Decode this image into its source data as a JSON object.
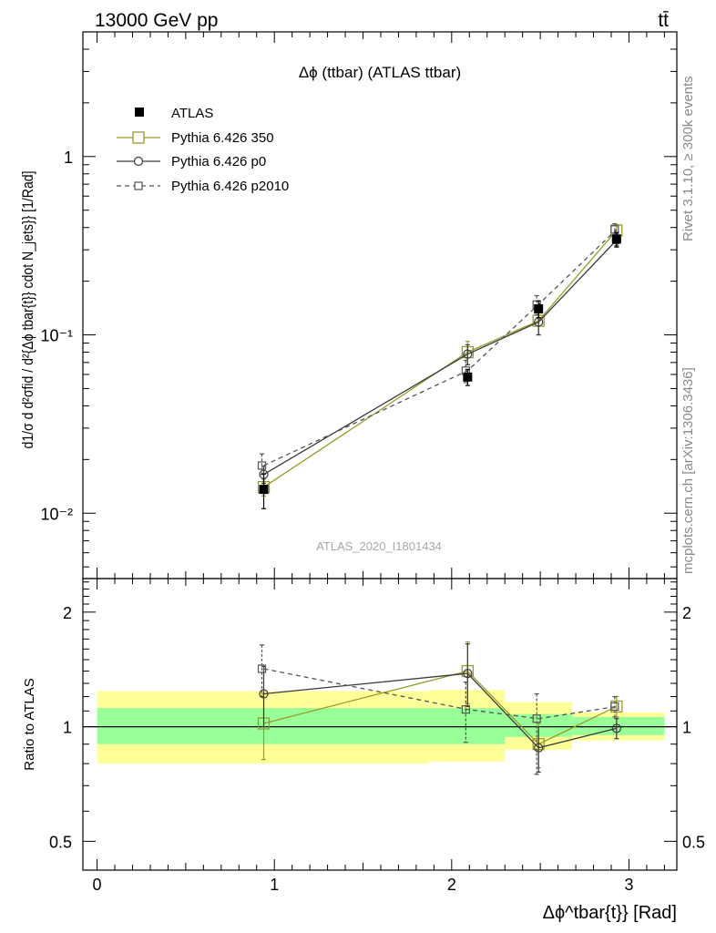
{
  "header": {
    "energy_label": "13000 GeV pp",
    "process_label": "tt̄"
  },
  "side_text": {
    "rivet": "Rivet 3.1.10, ≥ 300k events",
    "mcplots": "mcplots.cern.ch [arXiv:1306.3436]"
  },
  "colors": {
    "atlas": "#000000",
    "p350": "#9a9a2a",
    "p0": "#3a3a3a",
    "p2010": "#555555",
    "band_inner": "#99ff99",
    "band_outer": "#ffff99"
  },
  "chart_data": [
    {
      "type": "line",
      "scale": "log",
      "title": "Δϕ (ttbar) (ATLAS ttbar)",
      "watermark": "ATLAS_2020_I1801434",
      "ylabel": "d1/σ d d²σfid / d²{Δϕ tbar{t}} cdot N_jets}} [1/Rad]",
      "xlim": [
        -0.08,
        3.27
      ],
      "ylim": [
        0.0043,
        5.0
      ],
      "y_tick_labels": [
        "10⁻²",
        "10⁻¹",
        "1"
      ],
      "legend_position": "top-left",
      "series": [
        {
          "name": "ATLAS",
          "key": "atlas",
          "x": [
            0.94,
            2.09,
            2.49,
            2.93
          ],
          "y": [
            0.0136,
            0.058,
            0.14,
            0.345
          ],
          "err_low": [
            0.003,
            0.006,
            0.015,
            0.03
          ],
          "err_high": [
            0.003,
            0.006,
            0.015,
            0.03
          ]
        },
        {
          "name": "Pythia 6.426 350",
          "key": "p350",
          "x": [
            0.94,
            2.09,
            2.49,
            2.93
          ],
          "y": [
            0.014,
            0.08,
            0.12,
            0.385
          ],
          "err_low": [
            0.0015,
            0.012,
            0.02,
            0.03
          ],
          "err_high": [
            0.0015,
            0.012,
            0.02,
            0.03
          ]
        },
        {
          "name": "Pythia 6.426 p0",
          "key": "p0",
          "x": [
            0.94,
            2.09,
            2.49,
            2.93
          ],
          "y": [
            0.0165,
            0.078,
            0.118,
            0.34
          ],
          "err_low": [
            0.0018,
            0.01,
            0.018,
            0.03
          ],
          "err_high": [
            0.0018,
            0.01,
            0.018,
            0.03
          ]
        },
        {
          "name": "Pythia 6.426 p2010",
          "key": "p2010",
          "x": [
            0.94,
            2.09,
            2.49,
            2.93
          ],
          "y": [
            0.0185,
            0.063,
            0.148,
            0.39
          ],
          "err_low": [
            0.002,
            0.009,
            0.018,
            0.03
          ],
          "err_high": [
            0.003,
            0.009,
            0.018,
            0.03
          ]
        }
      ]
    },
    {
      "type": "line",
      "scale": "log",
      "ylabel": "Ratio to ATLAS",
      "xlabel": "Δϕ^tbar{t}} [Rad]",
      "xlim": [
        -0.08,
        3.27
      ],
      "ylim": [
        0.42,
        2.45
      ],
      "x_tick_labels": [
        "0",
        "1",
        "2",
        "3"
      ],
      "y_tick_labels": [
        "0.5",
        "1",
        "2"
      ],
      "bands": [
        {
          "x_low": 0.0,
          "x_high": 1.87,
          "inner": [
            0.9,
            1.12
          ],
          "outer": [
            0.8,
            1.24
          ]
        },
        {
          "x_low": 1.87,
          "x_high": 2.3,
          "inner": [
            0.9,
            1.12
          ],
          "outer": [
            0.81,
            1.25
          ]
        },
        {
          "x_low": 2.3,
          "x_high": 2.68,
          "inner": [
            0.94,
            1.08
          ],
          "outer": [
            0.87,
            1.16
          ]
        },
        {
          "x_low": 2.68,
          "x_high": 3.2,
          "inner": [
            0.95,
            1.06
          ],
          "outer": [
            0.92,
            1.09
          ]
        }
      ],
      "series": [
        {
          "name": "Pythia 6.426 350",
          "key": "p350",
          "x": [
            0.94,
            2.09,
            2.49,
            2.93
          ],
          "y": [
            1.02,
            1.4,
            0.9,
            1.13
          ],
          "err_low": [
            0.2,
            0.25,
            0.12,
            0.07
          ],
          "err_high": [
            0.2,
            0.27,
            0.12,
            0.07
          ]
        },
        {
          "name": "Pythia 6.426 p0",
          "key": "p0",
          "x": [
            0.94,
            2.09,
            2.49,
            2.93
          ],
          "y": [
            1.22,
            1.38,
            0.88,
            0.99
          ],
          "err_low": [
            0.22,
            0.25,
            0.12,
            0.06
          ],
          "err_high": [
            0.22,
            0.27,
            0.12,
            0.06
          ]
        },
        {
          "name": "Pythia 6.426 p2010",
          "key": "p2010",
          "x": [
            0.94,
            2.09,
            2.49,
            2.93
          ],
          "y": [
            1.42,
            1.11,
            1.05,
            1.13
          ],
          "err_low": [
            0.22,
            0.2,
            0.3,
            0.07
          ],
          "err_high": [
            0.22,
            0.2,
            0.17,
            0.07
          ]
        }
      ]
    }
  ]
}
